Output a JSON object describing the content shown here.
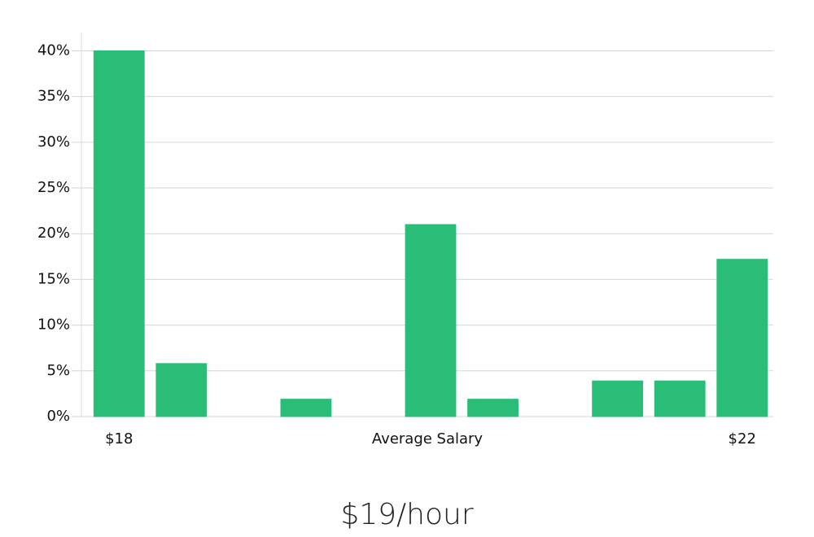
{
  "chart_data": {
    "type": "bar",
    "categories": [
      "$18",
      null,
      null,
      null,
      null,
      null,
      null,
      null,
      null,
      null,
      "$22"
    ],
    "values": [
      40,
      5.8,
      0,
      1.9,
      0,
      21,
      1.9,
      0,
      3.9,
      3.9,
      17.2
    ],
    "color": "#2abd77",
    "xlabel": "Average Salary",
    "annotation": "$19/hour",
    "ylim": [
      0,
      42
    ],
    "yticks": [
      {
        "value": 0,
        "label": "0%"
      },
      {
        "value": 5,
        "label": "5%"
      },
      {
        "value": 10,
        "label": "10%"
      },
      {
        "value": 15,
        "label": "15%"
      },
      {
        "value": 20,
        "label": "20%"
      },
      {
        "value": 25,
        "label": "25%"
      },
      {
        "value": 30,
        "label": "30%"
      },
      {
        "value": 35,
        "label": "35%"
      },
      {
        "value": 40,
        "label": "40%"
      }
    ],
    "grid": true
  }
}
